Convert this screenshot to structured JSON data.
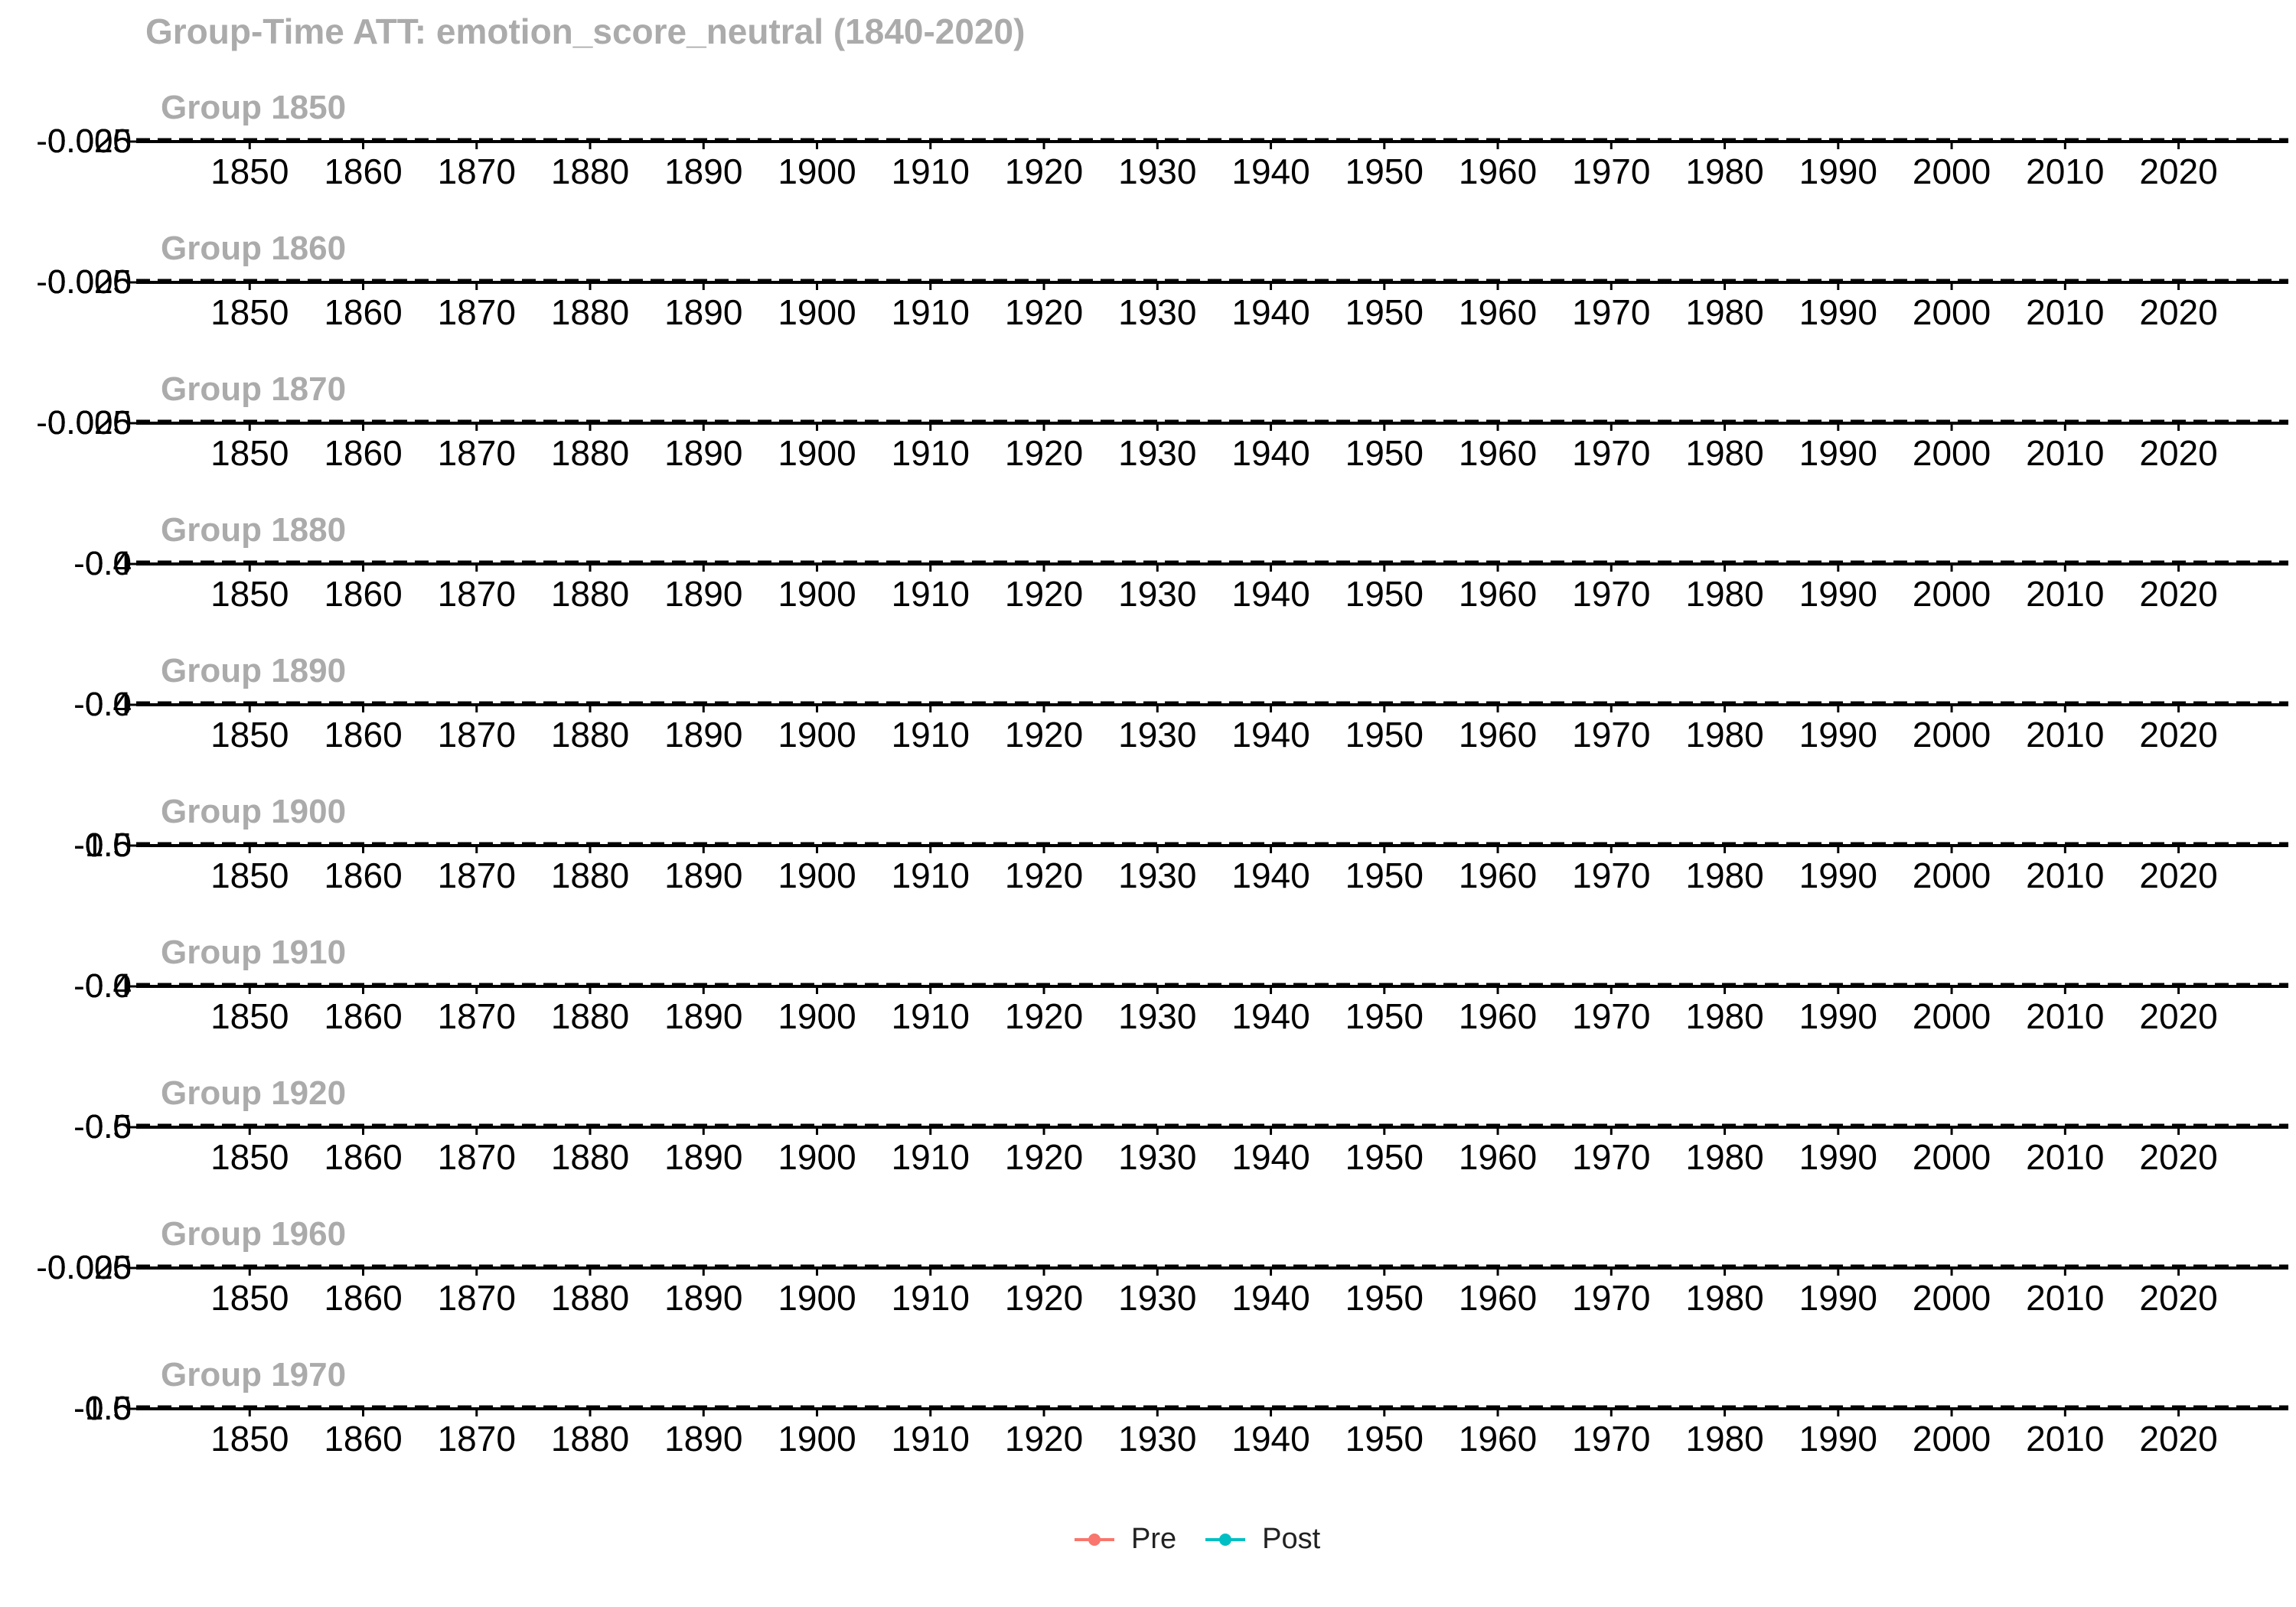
{
  "chart_data": {
    "type": "line",
    "title": "Group-Time ATT: emotion_score_neutral (1840-2020)",
    "x_ticks": [
      "1850",
      "1860",
      "1870",
      "1880",
      "1890",
      "1900",
      "1910",
      "1920",
      "1930",
      "1940",
      "1950",
      "1960",
      "1970",
      "1980",
      "1990",
      "2000",
      "2010",
      "2020"
    ],
    "xlim": [
      1840,
      2029
    ],
    "reference_line_y": 0,
    "grid": false,
    "legend": {
      "position": "bottom",
      "entries": [
        {
          "name": "Pre",
          "color": "#F8766D"
        },
        {
          "name": "Post",
          "color": "#00BFC4"
        }
      ]
    },
    "panels": [
      {
        "label": "Group 1850",
        "y_tick_labels": [
          "-0.025",
          "0.000",
          "0.025"
        ]
      },
      {
        "label": "Group 1860",
        "y_tick_labels": [
          "-0.025",
          "0.000",
          "0.025"
        ]
      },
      {
        "label": "Group 1870",
        "y_tick_labels": [
          "-0.025",
          "0.000",
          "0.025"
        ]
      },
      {
        "label": "Group 1880",
        "y_tick_labels": [
          "-0.4",
          "0.0",
          "0.4"
        ]
      },
      {
        "label": "Group 1890",
        "y_tick_labels": [
          "-0.4",
          "0.0",
          "0.4"
        ]
      },
      {
        "label": "Group 1900",
        "y_tick_labels": [
          "-1.0",
          "-0.5",
          "0.0",
          "0.5"
        ]
      },
      {
        "label": "Group 1910",
        "y_tick_labels": [
          "-0.4",
          "0.0",
          "0.4"
        ]
      },
      {
        "label": "Group 1920",
        "y_tick_labels": [
          "-0.5",
          "0.0",
          "0.5"
        ]
      },
      {
        "label": "Group 1960",
        "y_tick_labels": [
          "-0.025",
          "0.000",
          "0.025"
        ]
      },
      {
        "label": "Group 1970",
        "y_tick_labels": [
          "-1.0",
          "-0.5",
          "0.0",
          "0.5"
        ]
      }
    ]
  }
}
